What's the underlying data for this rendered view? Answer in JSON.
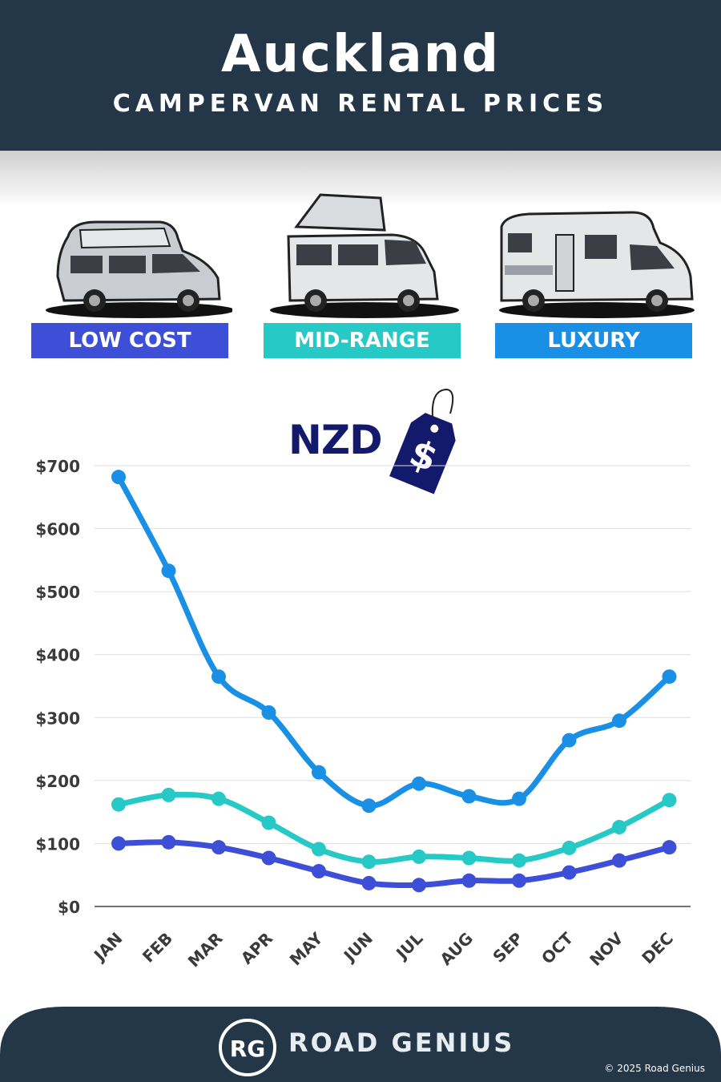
{
  "header": {
    "title": "Auckland",
    "subtitle": "CAMPERVAN RENTAL PRICES"
  },
  "categories": [
    {
      "label": "LOW COST",
      "color": "#3d4fd6"
    },
    {
      "label": "MID-RANGE",
      "color": "#27c9c6"
    },
    {
      "label": "LUXURY",
      "color": "#1a8fe6"
    }
  ],
  "currency_label": "NZD",
  "tag_symbol": "$",
  "chart_data": {
    "type": "line",
    "categories": [
      "JAN",
      "FEB",
      "MAR",
      "APR",
      "MAY",
      "JUN",
      "JUL",
      "AUG",
      "SEP",
      "OCT",
      "NOV",
      "DEC"
    ],
    "series": [
      {
        "name": "LUXURY",
        "color": "#1a8fe6",
        "values": [
          682,
          533,
          365,
          308,
          213,
          160,
          195,
          175,
          171,
          264,
          295,
          365
        ]
      },
      {
        "name": "MID-RANGE",
        "color": "#27c9c6",
        "values": [
          162,
          177,
          171,
          133,
          91,
          71,
          79,
          77,
          73,
          93,
          126,
          169
        ]
      },
      {
        "name": "LOW COST",
        "color": "#3d4fd6",
        "values": [
          100,
          102,
          94,
          77,
          56,
          37,
          34,
          41,
          41,
          54,
          73,
          94
        ]
      }
    ],
    "yticks": [
      "$0",
      "$100",
      "$200",
      "$300",
      "$400",
      "$500",
      "$600",
      "$700"
    ],
    "ylim": [
      0,
      700
    ],
    "grid": true
  },
  "footer": {
    "brand": "ROAD GENIUS",
    "logo": "RG",
    "copyright": "© 2025 Road Genius"
  }
}
